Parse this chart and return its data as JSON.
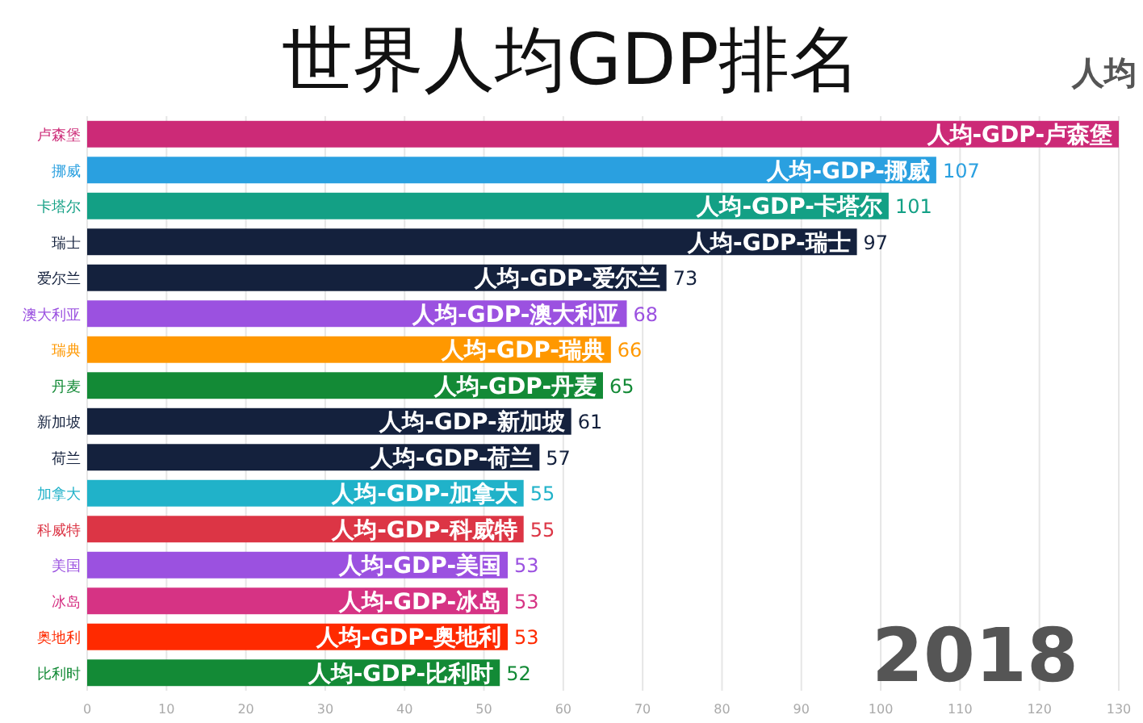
{
  "chart_data": {
    "type": "bar",
    "orientation": "horizontal",
    "title": "世界人均GDP排名",
    "subtitle": "人均",
    "categories": [
      "卢森堡",
      "挪威",
      "卡塔尔",
      "瑞士",
      "爱尔兰",
      "澳大利亚",
      "瑞典",
      "丹麦",
      "新加坡",
      "荷兰",
      "加拿大",
      "科威特",
      "美国",
      "冰岛",
      "奥地利",
      "比利时"
    ],
    "values": [
      130,
      107,
      101,
      97,
      73,
      68,
      66,
      65,
      61,
      57,
      55,
      55,
      53,
      53,
      53,
      52
    ],
    "value_labels": [
      null,
      "107",
      "101",
      "97",
      "73",
      "68",
      "66",
      "65",
      "61",
      "57",
      "55",
      "55",
      "53",
      "53",
      "53",
      "52"
    ],
    "colors": [
      "#cc2a77",
      "#2aa0e0",
      "#13a085",
      "#14213d",
      "#14213d",
      "#9b51e0",
      "#ff9800",
      "#138a36",
      "#14213d",
      "#14213d",
      "#20b2c9",
      "#dc3545",
      "#9b51e0",
      "#d63384",
      "#ff2a00",
      "#138a36"
    ],
    "xlim": [
      0,
      130
    ],
    "xticks": [
      0,
      10,
      20,
      30,
      40,
      50,
      60,
      70,
      80,
      90,
      100,
      110,
      120,
      130
    ],
    "grid": "x",
    "annotations": [
      {
        "text": "人均-GDP-卢森堡",
        "x": 130,
        "y": "卢森堡"
      },
      {
        "text": "人均-GDP-挪威",
        "x": 107,
        "y": "挪威"
      },
      {
        "text": "人均-GDP-卡塔尔",
        "x": 101,
        "y": "卡塔尔"
      },
      {
        "text": "人均-GDP-瑞士",
        "x": 97,
        "y": "瑞士"
      },
      {
        "text": "人均-GDP-爱尔兰",
        "x": 73,
        "y": "爱尔兰"
      },
      {
        "text": "人均-GDP-澳大利亚",
        "x": 68,
        "y": "澳大利亚"
      },
      {
        "text": "人均-GDP-瑞典",
        "x": 66,
        "y": "瑞典"
      },
      {
        "text": "人均-GDP-丹麦",
        "x": 65,
        "y": "丹麦"
      },
      {
        "text": "人均-GDP-新加坡",
        "x": 61,
        "y": "新加坡"
      },
      {
        "text": "人均-GDP-荷兰",
        "x": 57,
        "y": "荷兰"
      },
      {
        "text": "人均-GDP-加拿大",
        "x": 55,
        "y": "加拿大"
      },
      {
        "text": "人均-GDP-科威特",
        "x": 55,
        "y": "科威特"
      },
      {
        "text": "人均-GDP-美国",
        "x": 53,
        "y": "美国"
      },
      {
        "text": "人均-GDP-冰岛",
        "x": 53,
        "y": "冰岛"
      },
      {
        "text": "人均-GDP-奥地利",
        "x": 53,
        "y": "奥地利"
      },
      {
        "text": "人均-GDP-比利时",
        "x": 52,
        "y": "比利时"
      },
      "2018"
    ]
  }
}
